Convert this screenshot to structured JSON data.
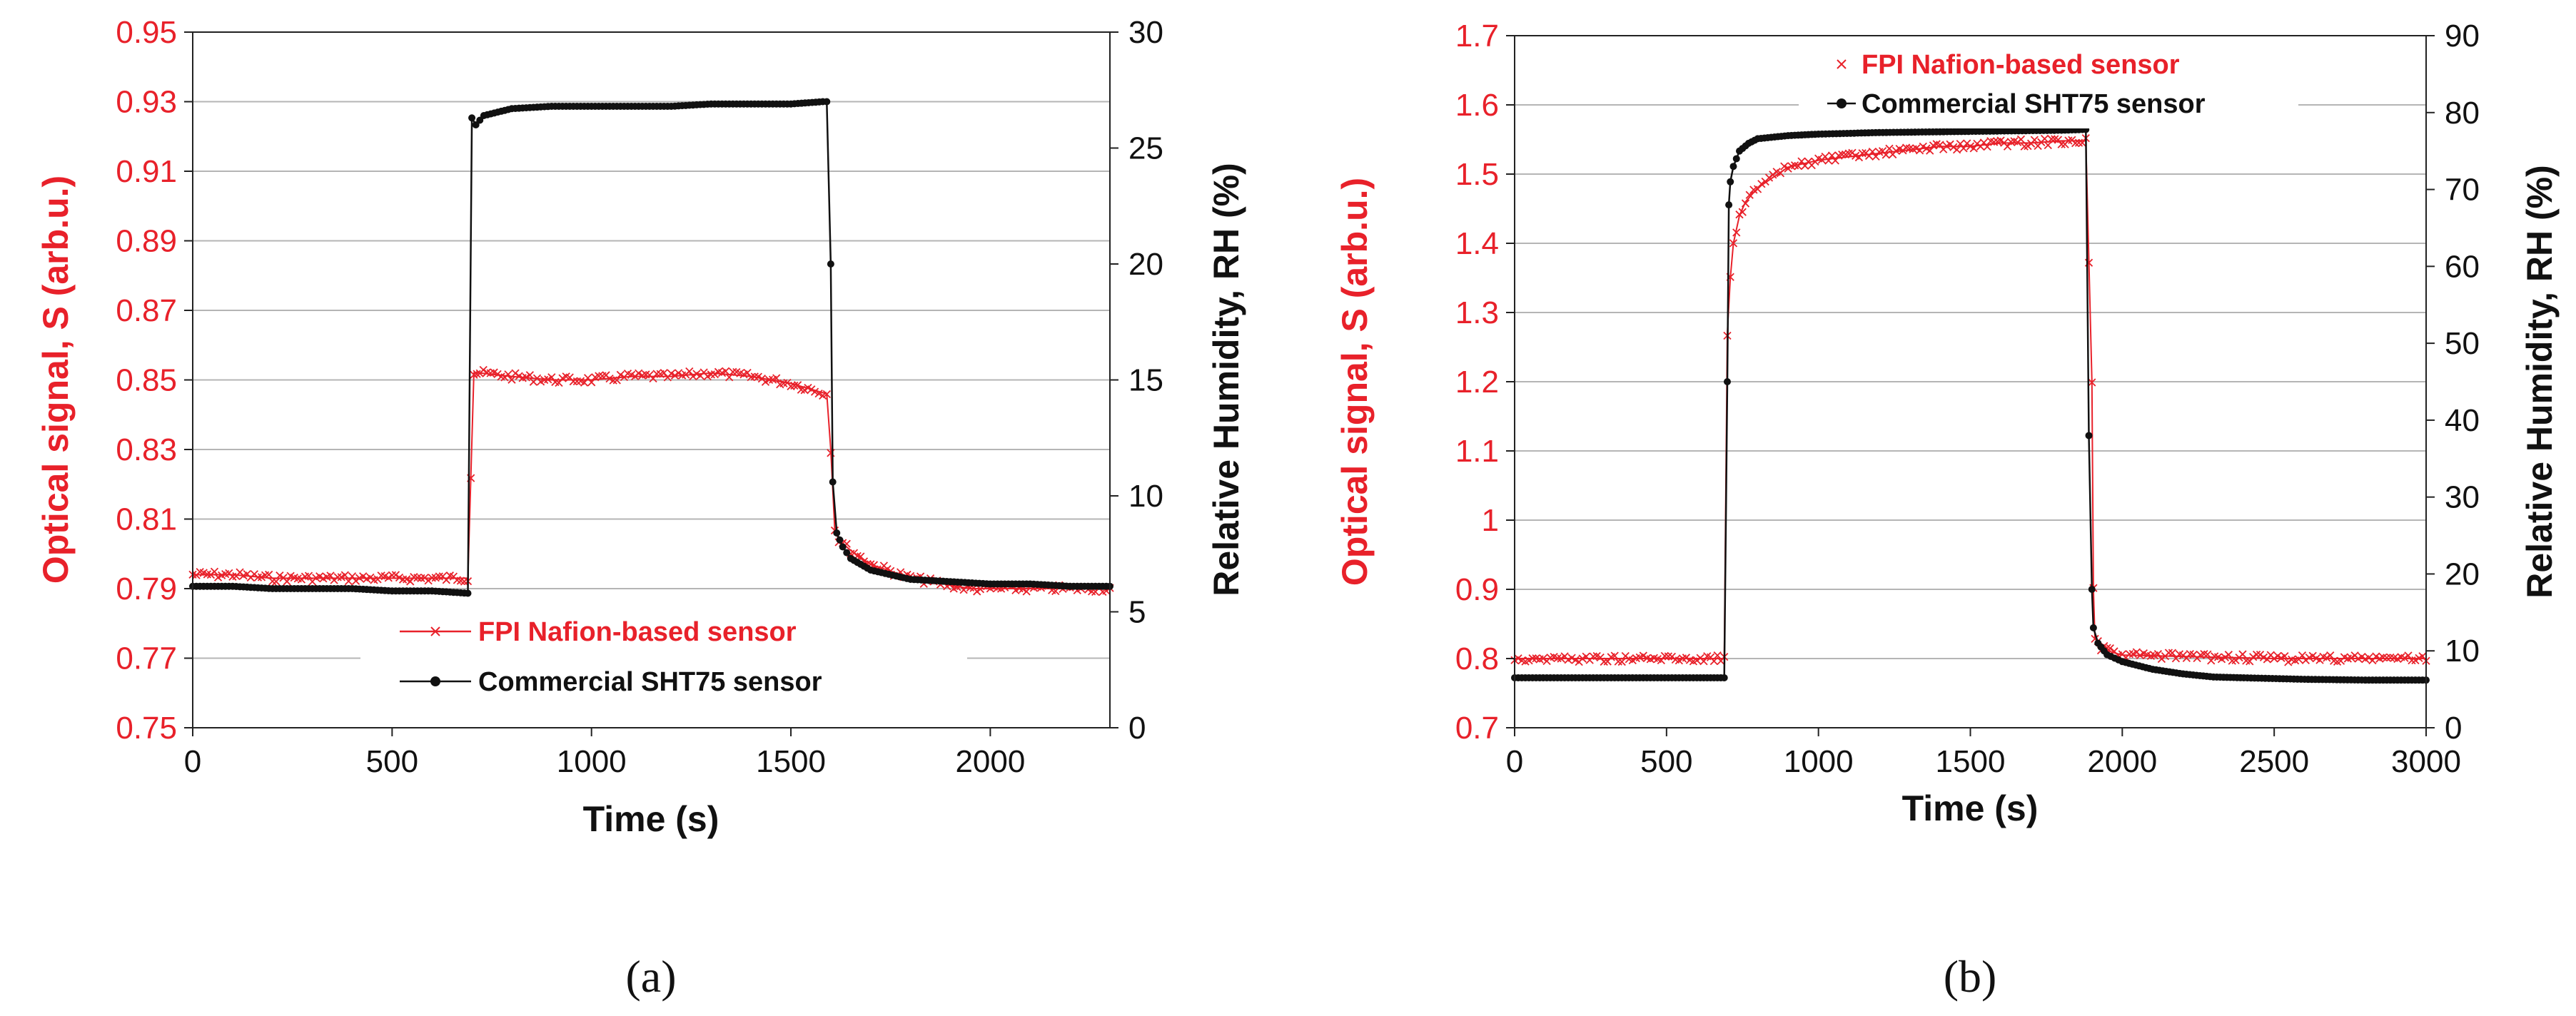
{
  "figure": {
    "panel_labels": [
      "(a)",
      "(b)"
    ]
  },
  "chart_data": [
    {
      "type": "line",
      "panel": "(a)",
      "xlabel": "Time (s)",
      "ylabel_left": "Optical signal, S (arb.u.)",
      "ylabel_right": "Relative Humidity, RH (%)",
      "xlim": [
        0,
        2300
      ],
      "ylim_left": [
        0.75,
        0.95
      ],
      "ylim_right": [
        0,
        30
      ],
      "xticks": [
        "0",
        "500",
        "1000",
        "1500",
        "2000"
      ],
      "xtick_values": [
        0,
        500,
        1000,
        1500,
        2000
      ],
      "yticks_left": [
        "0.75",
        "0.77",
        "0.79",
        "0.81",
        "0.83",
        "0.85",
        "0.87",
        "0.89",
        "0.91",
        "0.93",
        "0.95"
      ],
      "yticks_right": [
        "0",
        "5",
        "10",
        "15",
        "20",
        "25",
        "30"
      ],
      "grid": "horizontal",
      "legend_position": "bottom-center",
      "series": [
        {
          "name": "FPI Nafion-based sensor",
          "axis": "left",
          "color": "#e8212a",
          "marker": "x",
          "points": [
            [
              0,
              0.794
            ],
            [
              100,
              0.794
            ],
            [
              200,
              0.793
            ],
            [
              300,
              0.793
            ],
            [
              400,
              0.793
            ],
            [
              500,
              0.793
            ],
            [
              600,
              0.793
            ],
            [
              690,
              0.793
            ],
            [
              705,
              0.852
            ],
            [
              720,
              0.852
            ],
            [
              800,
              0.851
            ],
            [
              900,
              0.85
            ],
            [
              1000,
              0.85
            ],
            [
              1100,
              0.851
            ],
            [
              1200,
              0.851
            ],
            [
              1300,
              0.852
            ],
            [
              1400,
              0.851
            ],
            [
              1500,
              0.849
            ],
            [
              1560,
              0.847
            ],
            [
              1590,
              0.846
            ],
            [
              1600,
              0.83
            ],
            [
              1610,
              0.807
            ],
            [
              1620,
              0.804
            ],
            [
              1650,
              0.801
            ],
            [
              1700,
              0.797
            ],
            [
              1750,
              0.795
            ],
            [
              1800,
              0.793
            ],
            [
              1850,
              0.792
            ],
            [
              1900,
              0.791
            ],
            [
              1950,
              0.79
            ],
            [
              2000,
              0.79
            ],
            [
              2100,
              0.79
            ],
            [
              2200,
              0.79
            ],
            [
              2300,
              0.79
            ]
          ]
        },
        {
          "name": "Commercial SHT75 sensor",
          "axis": "right",
          "color": "#111111",
          "marker": "dot",
          "points": [
            [
              0,
              6.1
            ],
            [
              100,
              6.1
            ],
            [
              200,
              6.0
            ],
            [
              300,
              6.0
            ],
            [
              400,
              6.0
            ],
            [
              500,
              5.9
            ],
            [
              600,
              5.9
            ],
            [
              690,
              5.8
            ],
            [
              700,
              26.3
            ],
            [
              710,
              26.0
            ],
            [
              730,
              26.4
            ],
            [
              800,
              26.7
            ],
            [
              900,
              26.8
            ],
            [
              1000,
              26.8
            ],
            [
              1100,
              26.8
            ],
            [
              1200,
              26.8
            ],
            [
              1300,
              26.9
            ],
            [
              1400,
              26.9
            ],
            [
              1500,
              26.9
            ],
            [
              1580,
              27.0
            ],
            [
              1590,
              27.0
            ],
            [
              1600,
              20.0
            ],
            [
              1605,
              10.6
            ],
            [
              1615,
              8.4
            ],
            [
              1630,
              7.8
            ],
            [
              1650,
              7.3
            ],
            [
              1700,
              6.8
            ],
            [
              1800,
              6.4
            ],
            [
              1900,
              6.3
            ],
            [
              2000,
              6.2
            ],
            [
              2100,
              6.2
            ],
            [
              2200,
              6.1
            ],
            [
              2300,
              6.1
            ]
          ]
        }
      ]
    },
    {
      "type": "line",
      "panel": "(b)",
      "xlabel": "Time (s)",
      "ylabel_left": "Optical signal, S (arb.u.)",
      "ylabel_right": "Relative Humidity, RH (%)",
      "xlim": [
        0,
        3000
      ],
      "ylim_left": [
        0.7,
        1.7
      ],
      "ylim_right": [
        0,
        90
      ],
      "xticks": [
        "0",
        "500",
        "1000",
        "1500",
        "2000",
        "2500",
        "3000"
      ],
      "xtick_values": [
        0,
        500,
        1000,
        1500,
        2000,
        2500,
        3000
      ],
      "yticks_left": [
        "0.7",
        "0.8",
        "0.9",
        "1",
        "1.1",
        "1.2",
        "1.3",
        "1.4",
        "1.5",
        "1.6",
        "1.7"
      ],
      "yticks_right": [
        "0",
        "10",
        "20",
        "30",
        "40",
        "50",
        "60",
        "70",
        "80",
        "90"
      ],
      "grid": "horizontal",
      "legend_position": "top-center",
      "series": [
        {
          "name": "FPI Nafion-based sensor",
          "axis": "left",
          "color": "#e8212a",
          "marker": "x",
          "points": [
            [
              0,
              0.8
            ],
            [
              200,
              0.8
            ],
            [
              400,
              0.8
            ],
            [
              600,
              0.8
            ],
            [
              690,
              0.8
            ],
            [
              700,
              1.27
            ],
            [
              710,
              1.35
            ],
            [
              720,
              1.4
            ],
            [
              740,
              1.44
            ],
            [
              760,
              1.46
            ],
            [
              800,
              1.48
            ],
            [
              850,
              1.495
            ],
            [
              900,
              1.51
            ],
            [
              1000,
              1.52
            ],
            [
              1100,
              1.525
            ],
            [
              1200,
              1.53
            ],
            [
              1300,
              1.535
            ],
            [
              1400,
              1.54
            ],
            [
              1500,
              1.54
            ],
            [
              1600,
              1.545
            ],
            [
              1700,
              1.545
            ],
            [
              1800,
              1.548
            ],
            [
              1880,
              1.548
            ],
            [
              1900,
              1.2
            ],
            [
              1905,
              0.9
            ],
            [
              1910,
              0.83
            ],
            [
              1930,
              0.815
            ],
            [
              1960,
              0.81
            ],
            [
              2000,
              0.805
            ],
            [
              2200,
              0.803
            ],
            [
              2500,
              0.8
            ],
            [
              2800,
              0.8
            ],
            [
              3000,
              0.8
            ]
          ]
        },
        {
          "name": "Commercial SHT75 sensor",
          "axis": "right",
          "color": "#111111",
          "marker": "dot",
          "points": [
            [
              0,
              6.5
            ],
            [
              200,
              6.5
            ],
            [
              400,
              6.5
            ],
            [
              600,
              6.5
            ],
            [
              690,
              6.5
            ],
            [
              700,
              45
            ],
            [
              705,
              68
            ],
            [
              710,
              71
            ],
            [
              720,
              73
            ],
            [
              740,
              75
            ],
            [
              770,
              76
            ],
            [
              800,
              76.6
            ],
            [
              900,
              77
            ],
            [
              1000,
              77.2
            ],
            [
              1200,
              77.4
            ],
            [
              1400,
              77.5
            ],
            [
              1600,
              77.6
            ],
            [
              1800,
              77.7
            ],
            [
              1880,
              77.8
            ],
            [
              1890,
              38
            ],
            [
              1900,
              18
            ],
            [
              1905,
              13
            ],
            [
              1920,
              11
            ],
            [
              1950,
              9.5
            ],
            [
              2000,
              8.6
            ],
            [
              2100,
              7.6
            ],
            [
              2200,
              7.0
            ],
            [
              2300,
              6.6
            ],
            [
              2400,
              6.5
            ],
            [
              2600,
              6.3
            ],
            [
              2800,
              6.2
            ],
            [
              3000,
              6.2
            ]
          ]
        }
      ]
    }
  ]
}
